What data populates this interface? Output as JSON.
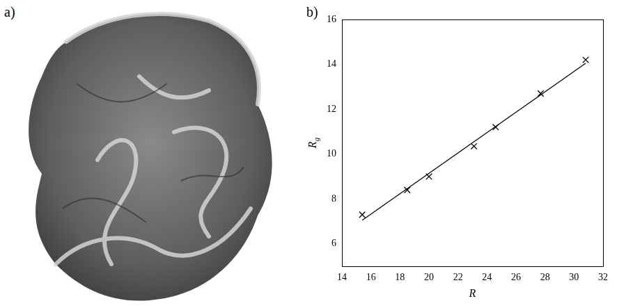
{
  "panel_a": {
    "label": "a)"
  },
  "chart_data": {
    "label": "b)",
    "type": "scatter",
    "xlabel": "R",
    "ylabel": {
      "text": "R",
      "subscript": "g"
    },
    "xlim": [
      14,
      32
    ],
    "xticks": [
      14,
      16,
      18,
      20,
      22,
      24,
      26,
      28,
      30,
      32
    ],
    "ylim": [
      5,
      16
    ],
    "yticks": [
      6,
      8,
      10,
      12,
      14,
      16
    ],
    "grid": false,
    "series": [
      {
        "type": "scatter",
        "marker": "x",
        "color": "#000000",
        "x": [
          15.4,
          18.5,
          20.0,
          23.1,
          24.6,
          27.7,
          30.8
        ],
        "values": [
          7.3,
          8.4,
          9.0,
          10.35,
          11.2,
          12.7,
          14.2
        ]
      },
      {
        "type": "line",
        "line_style": "solid",
        "color": "#000000",
        "x": [
          15.4,
          30.8
        ],
        "values": [
          7.05,
          14.05
        ]
      }
    ]
  }
}
